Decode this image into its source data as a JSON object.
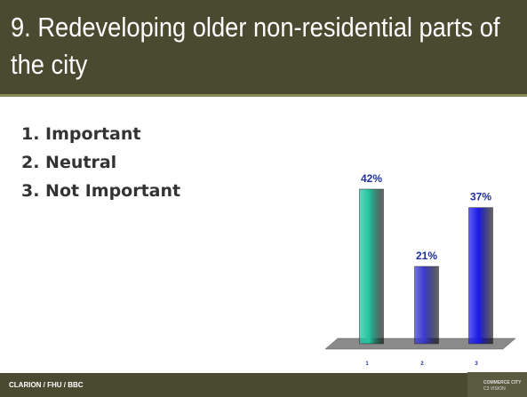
{
  "header": {
    "title": "9.  Redeveloping older non-residential parts of the city"
  },
  "list": [
    "1. Important",
    "2. Neutral",
    "3. Not Important"
  ],
  "chart_data": {
    "type": "bar",
    "categories": [
      "1",
      "2",
      "3"
    ],
    "values": [
      42,
      21,
      37
    ],
    "value_labels": [
      "42%",
      "21%",
      "37%"
    ],
    "colors": [
      "#22c4a0",
      "#3a3ad0",
      "#1a1ae8"
    ]
  },
  "footer": {
    "credit": "CLARION / FHU / BBC",
    "logo": "COMMERCE CITY",
    "logo_sub": "C3 VISION"
  }
}
